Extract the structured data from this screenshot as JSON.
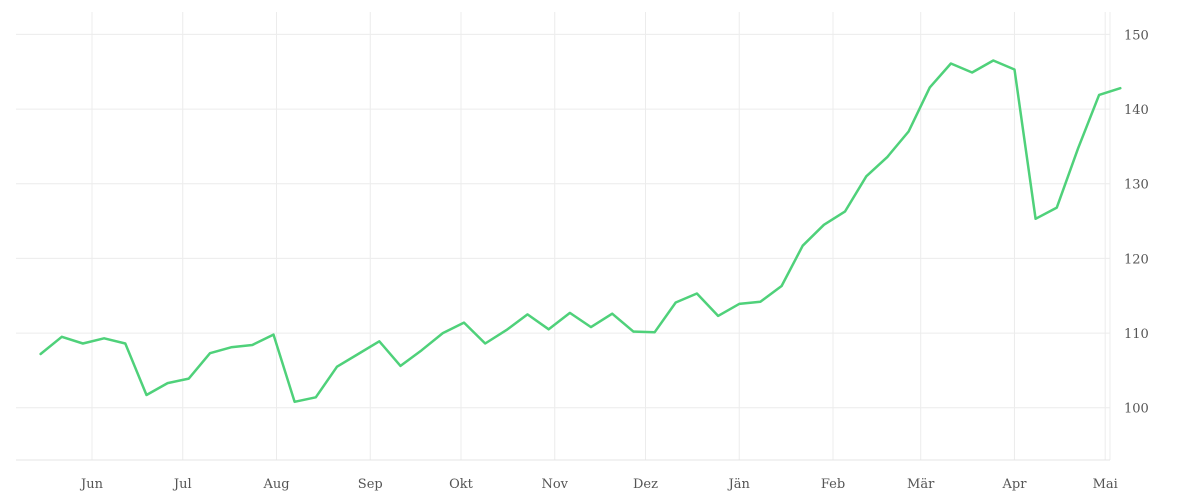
{
  "chart_data": {
    "type": "line",
    "title": "",
    "xlabel": "",
    "ylabel": "",
    "x_tick_labels": [
      "Jun",
      "Jul",
      "Aug",
      "Sep",
      "Okt",
      "Nov",
      "Dez",
      "Jän",
      "Feb",
      "Mär",
      "Apr",
      "Mai"
    ],
    "y_tick_labels": [
      "100",
      "110",
      "120",
      "130",
      "140",
      "150"
    ],
    "y_ticks": [
      100,
      110,
      120,
      130,
      140,
      150
    ],
    "ylim": [
      93,
      153
    ],
    "y_axis_side": "right",
    "grid": true,
    "colors": {
      "line": "#4fd17a",
      "grid": "#ececec",
      "text": "#555555"
    },
    "x": [
      "2023-05-15",
      "2023-05-22",
      "2023-05-29",
      "2023-06-05",
      "2023-06-12",
      "2023-06-19",
      "2023-06-26",
      "2023-07-03",
      "2023-07-10",
      "2023-07-17",
      "2023-07-24",
      "2023-07-31",
      "2023-08-07",
      "2023-08-14",
      "2023-08-21",
      "2023-08-28",
      "2023-09-04",
      "2023-09-11",
      "2023-09-18",
      "2023-09-25",
      "2023-10-02",
      "2023-10-09",
      "2023-10-16",
      "2023-10-23",
      "2023-10-30",
      "2023-11-06",
      "2023-11-13",
      "2023-11-20",
      "2023-11-27",
      "2023-12-04",
      "2023-12-11",
      "2023-12-18",
      "2023-12-25",
      "2024-01-01",
      "2024-01-08",
      "2024-01-15",
      "2024-01-22",
      "2024-01-29",
      "2024-02-05",
      "2024-02-12",
      "2024-02-19",
      "2024-02-26",
      "2024-03-04",
      "2024-03-11",
      "2024-03-18",
      "2024-03-25",
      "2024-04-01",
      "2024-04-08",
      "2024-04-15",
      "2024-04-22",
      "2024-04-29",
      "2024-05-06"
    ],
    "series": [
      {
        "values": [
          107.2,
          109.5,
          108.6,
          109.3,
          108.6,
          101.7,
          103.3,
          103.9,
          107.3,
          108.1,
          108.4,
          109.8,
          100.8,
          101.4,
          105.5,
          107.2,
          108.9,
          105.6,
          107.7,
          110.0,
          111.4,
          108.6,
          110.4,
          112.5,
          110.5,
          112.7,
          110.8,
          112.6,
          110.2,
          110.1,
          114.1,
          115.3,
          112.3,
          113.9,
          114.2,
          116.3,
          121.7,
          124.5,
          126.3,
          131.0,
          133.6,
          137.0,
          142.9,
          146.1,
          144.9,
          146.5,
          145.3,
          125.3,
          126.8,
          134.7,
          141.9,
          142.8
        ]
      }
    ]
  }
}
